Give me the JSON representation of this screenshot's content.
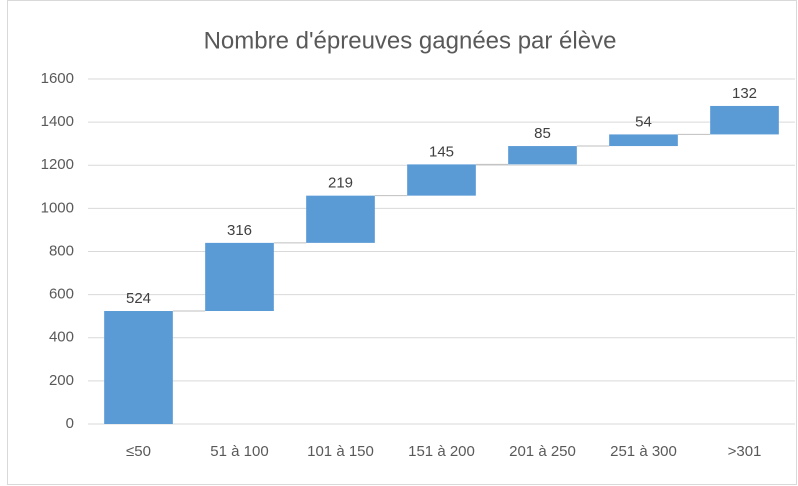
{
  "chart_data": {
    "type": "waterfall",
    "title": "Nombre d'épreuves gagnées par élève",
    "categories": [
      "≤50",
      "51 à 100",
      "101 à 150",
      "151 à 200",
      "201 à 250",
      "251 à 300",
      ">301"
    ],
    "values": [
      524,
      316,
      219,
      145,
      85,
      54,
      132
    ],
    "color": "#5b9bd5",
    "ylim": [
      0,
      1600
    ],
    "yticks": [
      0,
      200,
      400,
      600,
      800,
      1000,
      1200,
      1400,
      1600
    ],
    "grid": true
  }
}
